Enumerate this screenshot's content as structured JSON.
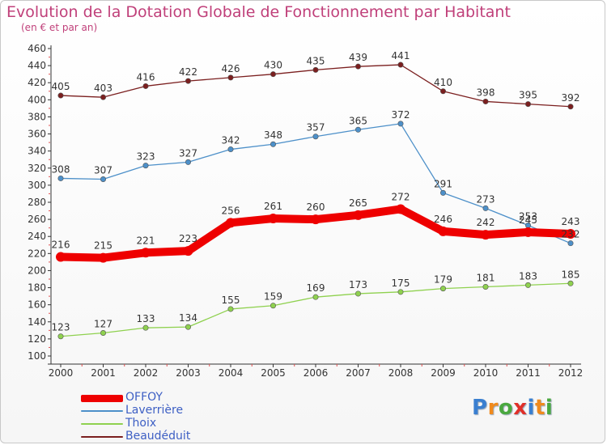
{
  "title": "Evolution de la Dotation Globale de Fonctionnement par Habitant",
  "subtitle": "(en € et par an)",
  "logo": {
    "text": "Proxiti",
    "letters": [
      "P",
      "r",
      "o",
      "x",
      "i",
      "t",
      "i"
    ]
  },
  "chart_data": {
    "type": "line",
    "title": "Evolution de la Dotation Globale de Fonctionnement par Habitant",
    "subtitle": "(en € et par an)",
    "xlabel": "",
    "ylabel": "",
    "categories": [
      "2000",
      "2001",
      "2002",
      "2003",
      "2004",
      "2005",
      "2006",
      "2007",
      "2008",
      "2009",
      "2010",
      "2011",
      "2012"
    ],
    "ylim": [
      100,
      460
    ],
    "yticks": [
      100,
      120,
      140,
      160,
      180,
      200,
      220,
      240,
      260,
      280,
      300,
      320,
      340,
      360,
      380,
      400,
      420,
      440,
      460
    ],
    "grid": false,
    "legend_position": "bottom-left",
    "series": [
      {
        "name": "OFFOY",
        "color": "#ee0000",
        "emphasis": "thick",
        "values": [
          216,
          215,
          221,
          223,
          256,
          261,
          260,
          265,
          272,
          246,
          242,
          245,
          243
        ],
        "labels": [
          "216",
          "215",
          "221",
          "223",
          "256",
          "261",
          "260",
          "265",
          "272",
          "246",
          "242",
          "245",
          "243"
        ]
      },
      {
        "name": "Laverrière",
        "color": "#4d90c9",
        "emphasis": "normal",
        "values": [
          308,
          307,
          323,
          327,
          342,
          348,
          357,
          365,
          372,
          291,
          273,
          253,
          232
        ],
        "labels": [
          "308",
          "307",
          "323",
          "327",
          "342",
          "348",
          "357",
          "365",
          "372",
          "291",
          "273",
          "253",
          "232"
        ]
      },
      {
        "name": "Thoix",
        "color": "#8fd14f",
        "emphasis": "normal",
        "values": [
          123,
          127,
          133,
          134,
          155,
          159,
          169,
          173,
          175,
          179,
          181,
          183,
          185
        ],
        "labels": [
          "123",
          "127",
          "133",
          "134",
          "155",
          "159",
          "169",
          "173",
          "175",
          "179",
          "181",
          "183",
          "185"
        ]
      },
      {
        "name": "Beaudéduit",
        "color": "#7b1f1f",
        "emphasis": "normal",
        "values": [
          405,
          403,
          416,
          422,
          426,
          430,
          435,
          439,
          441,
          410,
          398,
          395,
          392
        ],
        "labels": [
          "405",
          "403",
          "416",
          "422",
          "426",
          "430",
          "435",
          "439",
          "441",
          "410",
          "398",
          "395",
          "392"
        ]
      }
    ]
  }
}
